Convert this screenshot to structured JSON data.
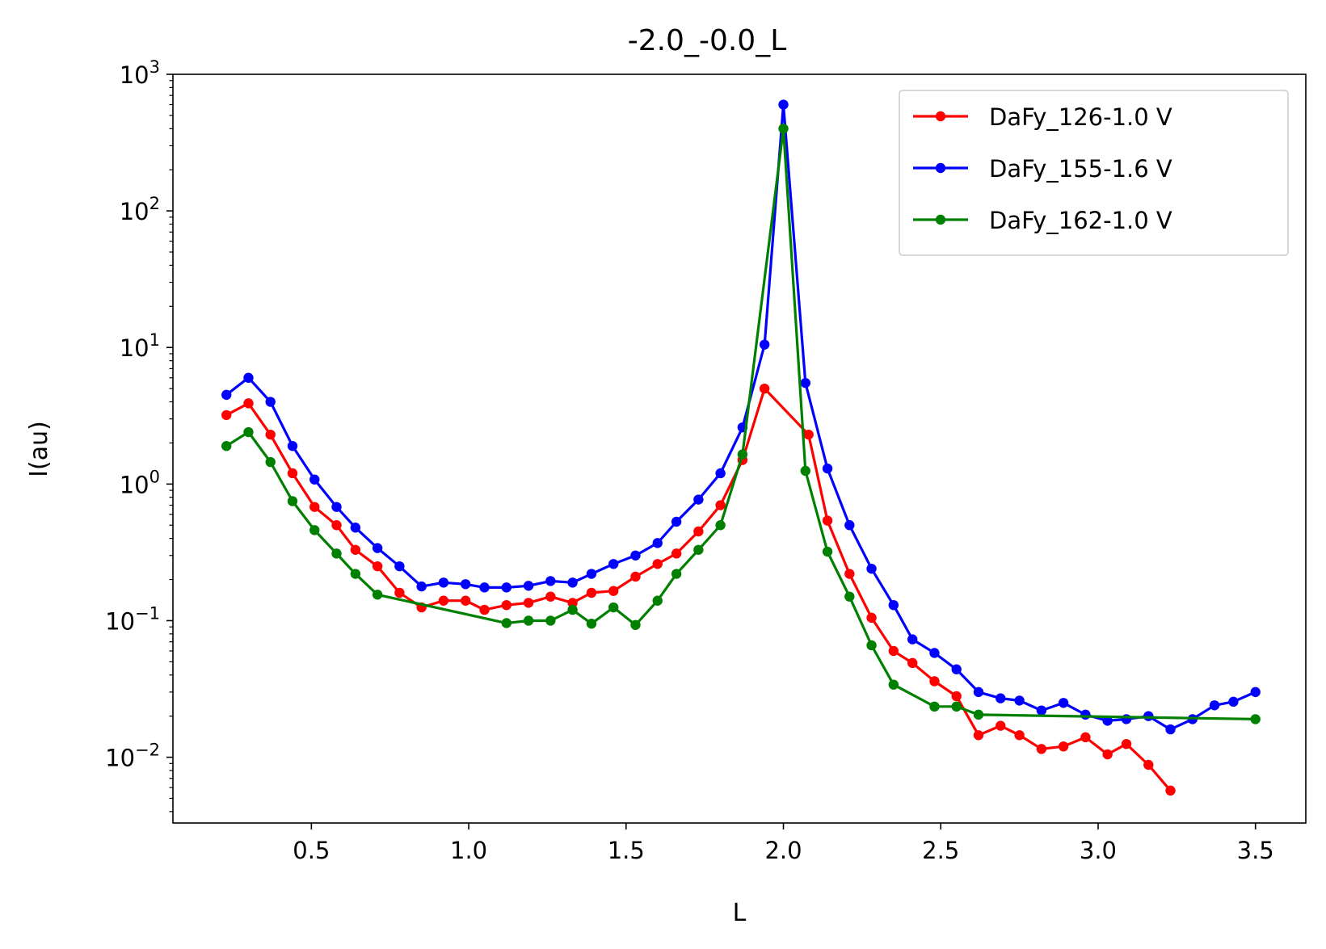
{
  "chart_data": {
    "type": "line",
    "title": "-2.0_-0.0_L",
    "xlabel": "L",
    "ylabel": "I(au)",
    "xscale": "linear",
    "yscale": "log",
    "xlim": [
      0.06,
      3.66
    ],
    "ylim": [
      0.0033,
      1000
    ],
    "xticks": [
      0.5,
      1.0,
      1.5,
      2.0,
      2.5,
      3.0,
      3.5
    ],
    "xtick_labels": [
      "0.5",
      "1.0",
      "1.5",
      "2.0",
      "2.5",
      "3.0",
      "3.5"
    ],
    "yticks": [
      {
        "value": 0.01,
        "base": "10",
        "exp": "−2"
      },
      {
        "value": 0.1,
        "base": "10",
        "exp": "−1"
      },
      {
        "value": 1,
        "base": "10",
        "exp": "0"
      },
      {
        "value": 10,
        "base": "10",
        "exp": "1"
      },
      {
        "value": 100,
        "base": "10",
        "exp": "2"
      },
      {
        "value": 1000,
        "base": "10",
        "exp": "3"
      }
    ],
    "grid": false,
    "legend_position": "top-right",
    "series": [
      {
        "name": "DaFy_126-1.0 V",
        "color": "#ff0000",
        "x": [
          0.23,
          0.3,
          0.37,
          0.44,
          0.51,
          0.58,
          0.64,
          0.71,
          0.78,
          0.85,
          0.92,
          0.99,
          1.05,
          1.12,
          1.19,
          1.26,
          1.33,
          1.39,
          1.46,
          1.53,
          1.6,
          1.66,
          1.73,
          1.8,
          1.87,
          1.94,
          2.08,
          2.14,
          2.21,
          2.28,
          2.35,
          2.41,
          2.48,
          2.55,
          2.62,
          2.69,
          2.75,
          2.82,
          2.89,
          2.96,
          3.03,
          3.09,
          3.16,
          3.23
        ],
        "y": [
          3.2,
          3.9,
          2.3,
          1.2,
          0.68,
          0.5,
          0.33,
          0.25,
          0.16,
          0.125,
          0.14,
          0.14,
          0.12,
          0.13,
          0.135,
          0.15,
          0.135,
          0.16,
          0.165,
          0.21,
          0.26,
          0.31,
          0.45,
          0.7,
          1.5,
          5.0,
          2.3,
          0.54,
          0.22,
          0.105,
          0.06,
          0.049,
          0.036,
          0.028,
          0.0145,
          0.017,
          0.0145,
          0.0115,
          0.012,
          0.014,
          0.0105,
          0.0125,
          0.0088,
          0.0057
        ]
      },
      {
        "name": "DaFy_155-1.6 V",
        "color": "#0000ff",
        "x": [
          0.23,
          0.3,
          0.37,
          0.44,
          0.51,
          0.58,
          0.64,
          0.71,
          0.78,
          0.85,
          0.92,
          0.99,
          1.05,
          1.12,
          1.19,
          1.26,
          1.33,
          1.39,
          1.46,
          1.53,
          1.6,
          1.66,
          1.73,
          1.8,
          1.87,
          1.94,
          2.0,
          2.07,
          2.14,
          2.21,
          2.28,
          2.35,
          2.41,
          2.48,
          2.55,
          2.62,
          2.69,
          2.75,
          2.82,
          2.89,
          2.96,
          3.03,
          3.09,
          3.16,
          3.23,
          3.3,
          3.37,
          3.43,
          3.5
        ],
        "y": [
          4.5,
          6.0,
          4.0,
          1.9,
          1.08,
          0.68,
          0.48,
          0.34,
          0.25,
          0.178,
          0.19,
          0.185,
          0.175,
          0.175,
          0.18,
          0.195,
          0.19,
          0.22,
          0.26,
          0.3,
          0.37,
          0.53,
          0.77,
          1.2,
          2.6,
          10.5,
          600,
          5.5,
          1.3,
          0.5,
          0.24,
          0.13,
          0.073,
          0.058,
          0.044,
          0.03,
          0.027,
          0.026,
          0.022,
          0.025,
          0.0205,
          0.0185,
          0.019,
          0.02,
          0.016,
          0.019,
          0.024,
          0.0255,
          0.03
        ]
      },
      {
        "name": "DaFy_162-1.0 V",
        "color": "#008000",
        "x": [
          0.23,
          0.3,
          0.37,
          0.44,
          0.51,
          0.58,
          0.64,
          0.71,
          1.12,
          1.19,
          1.26,
          1.33,
          1.39,
          1.46,
          1.53,
          1.6,
          1.66,
          1.73,
          1.8,
          1.87,
          2.0,
          2.07,
          2.14,
          2.21,
          2.28,
          2.35,
          2.48,
          2.55,
          2.62,
          3.5
        ],
        "y": [
          1.9,
          2.4,
          1.45,
          0.75,
          0.46,
          0.31,
          0.22,
          0.155,
          0.096,
          0.1,
          0.1,
          0.12,
          0.095,
          0.125,
          0.093,
          0.14,
          0.22,
          0.33,
          0.5,
          1.65,
          400,
          1.25,
          0.32,
          0.15,
          0.066,
          0.034,
          0.0235,
          0.0235,
          0.0205,
          0.019
        ]
      }
    ]
  }
}
